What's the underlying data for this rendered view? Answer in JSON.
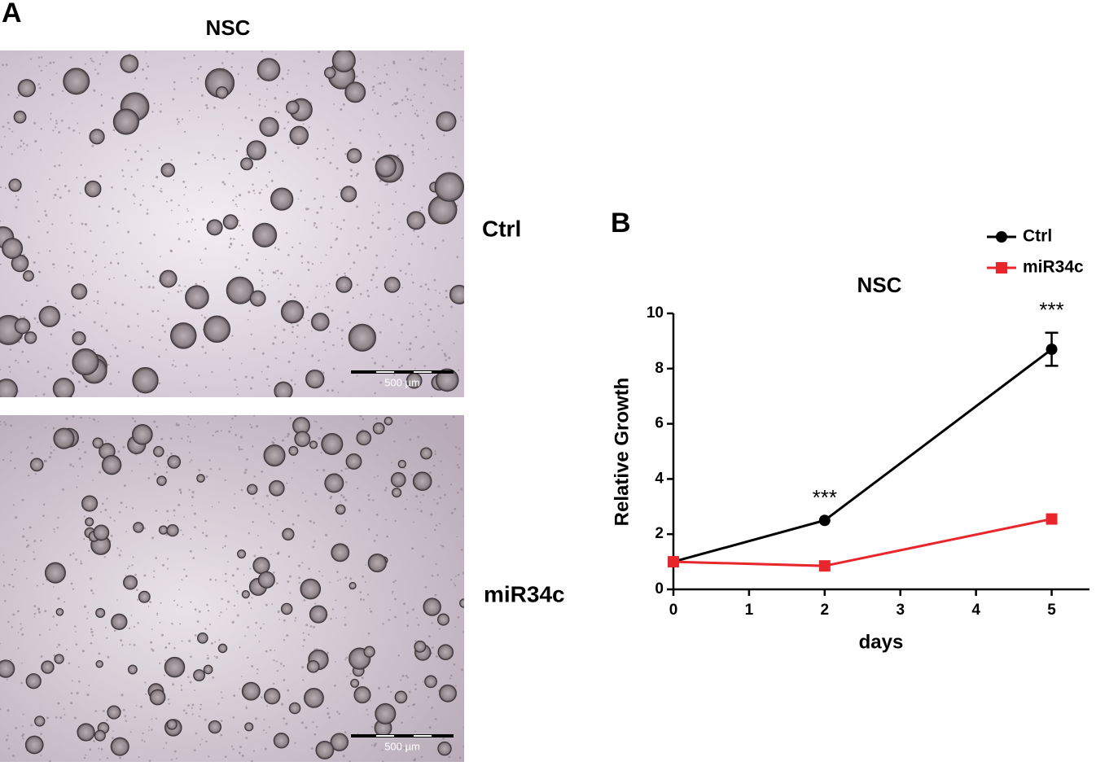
{
  "panel_a": {
    "label": "A",
    "title": "NSC",
    "rows": [
      "Ctrl",
      "miR34c"
    ],
    "scale_bar": "500 µm"
  },
  "panel_b": {
    "label": "B"
  },
  "chart_data": {
    "type": "line",
    "title": "NSC",
    "x_label": "days",
    "y_label": "Relative Growth",
    "x": [
      0,
      2,
      5
    ],
    "series": [
      {
        "name": "Ctrl",
        "color": "#000000",
        "marker": "circle",
        "values": [
          1,
          2.5,
          8.7
        ],
        "errors": [
          0,
          0,
          0.6
        ]
      },
      {
        "name": "miR34c",
        "color": "#e8262b",
        "marker": "square",
        "values": [
          1,
          0.85,
          2.55
        ],
        "errors": [
          0,
          0,
          0
        ]
      }
    ],
    "annotations": [
      "***",
      "***"
    ],
    "xlim": [
      0,
      5.5
    ],
    "xticks": [
      0,
      1,
      2,
      3,
      4,
      5
    ],
    "ylim": [
      0,
      10
    ],
    "yticks": [
      0,
      2,
      4,
      6,
      8,
      10
    ],
    "grid": false,
    "legend": "top-right"
  }
}
